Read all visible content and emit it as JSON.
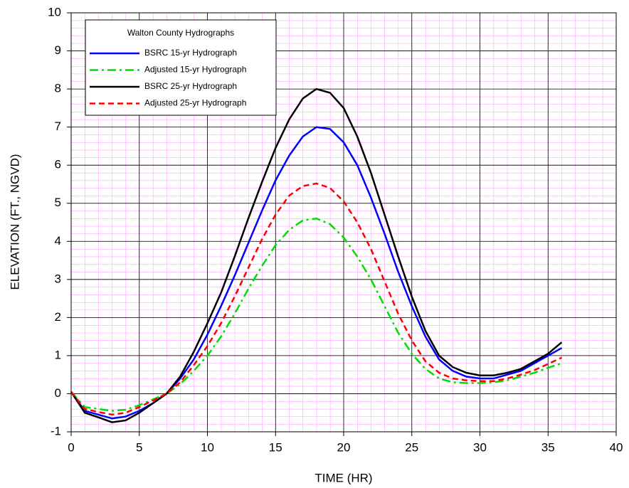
{
  "chart_data": {
    "type": "line",
    "title": "Walton County Hydrographs",
    "x_label": "TIME (HR)",
    "y_label": "ELEVATION (FT., NGVD)",
    "x": [
      0,
      1,
      2,
      3,
      4,
      5,
      6,
      7,
      8,
      9,
      10,
      11,
      12,
      13,
      14,
      15,
      16,
      17,
      18,
      19,
      20,
      21,
      22,
      23,
      24,
      25,
      26,
      27,
      28,
      29,
      30,
      31,
      32,
      33,
      34,
      35,
      36
    ],
    "series": [
      {
        "name": "BSRC 15-yr Hydrograph",
        "color": "#0000ff",
        "dash": "solid",
        "values": [
          0.05,
          -0.45,
          -0.55,
          -0.65,
          -0.6,
          -0.45,
          -0.25,
          0,
          0.4,
          0.9,
          1.55,
          2.3,
          3.1,
          3.95,
          4.8,
          5.6,
          6.25,
          6.75,
          7.0,
          6.95,
          6.6,
          6.0,
          5.15,
          4.2,
          3.2,
          2.3,
          1.5,
          0.9,
          0.6,
          0.45,
          0.4,
          0.4,
          0.5,
          0.6,
          0.8,
          1.0,
          1.2
        ]
      },
      {
        "name": "Adjusted 15-yr Hydrograph",
        "color": "#00dd00",
        "dash": "dashdot",
        "values": [
          0.05,
          -0.35,
          -0.4,
          -0.45,
          -0.42,
          -0.3,
          -0.15,
          0,
          0.25,
          0.6,
          1.0,
          1.5,
          2.1,
          2.75,
          3.35,
          3.9,
          4.3,
          4.55,
          4.6,
          4.45,
          4.1,
          3.6,
          3.0,
          2.3,
          1.6,
          1.05,
          0.65,
          0.4,
          0.3,
          0.28,
          0.28,
          0.3,
          0.35,
          0.45,
          0.55,
          0.68,
          0.8
        ]
      },
      {
        "name": "BSRC 25-yr Hydrograph",
        "color": "#000000",
        "dash": "solid",
        "values": [
          0.05,
          -0.5,
          -0.62,
          -0.75,
          -0.7,
          -0.5,
          -0.25,
          0,
          0.45,
          1.1,
          1.85,
          2.65,
          3.6,
          4.6,
          5.55,
          6.45,
          7.2,
          7.75,
          8.0,
          7.9,
          7.5,
          6.75,
          5.8,
          4.7,
          3.6,
          2.55,
          1.65,
          1.0,
          0.7,
          0.55,
          0.48,
          0.48,
          0.55,
          0.65,
          0.85,
          1.05,
          1.35
        ]
      },
      {
        "name": "Adjusted 25-yr Hydrograph",
        "color": "#ff0000",
        "dash": "dash",
        "values": [
          0.05,
          -0.4,
          -0.48,
          -0.55,
          -0.5,
          -0.35,
          -0.18,
          0,
          0.3,
          0.75,
          1.25,
          1.85,
          2.55,
          3.3,
          4.05,
          4.7,
          5.2,
          5.45,
          5.52,
          5.4,
          5.05,
          4.5,
          3.8,
          2.95,
          2.1,
          1.4,
          0.85,
          0.55,
          0.4,
          0.35,
          0.33,
          0.33,
          0.4,
          0.5,
          0.62,
          0.78,
          0.95
        ]
      }
    ],
    "xlim": [
      0,
      40
    ],
    "xticks": [
      0,
      5,
      10,
      15,
      20,
      25,
      30,
      35,
      40
    ],
    "ylim": [
      -1,
      10
    ],
    "yticks": [
      -1,
      0,
      1,
      2,
      3,
      4,
      5,
      6,
      7,
      8,
      9,
      10
    ],
    "grid": true,
    "legend": "upper left"
  }
}
